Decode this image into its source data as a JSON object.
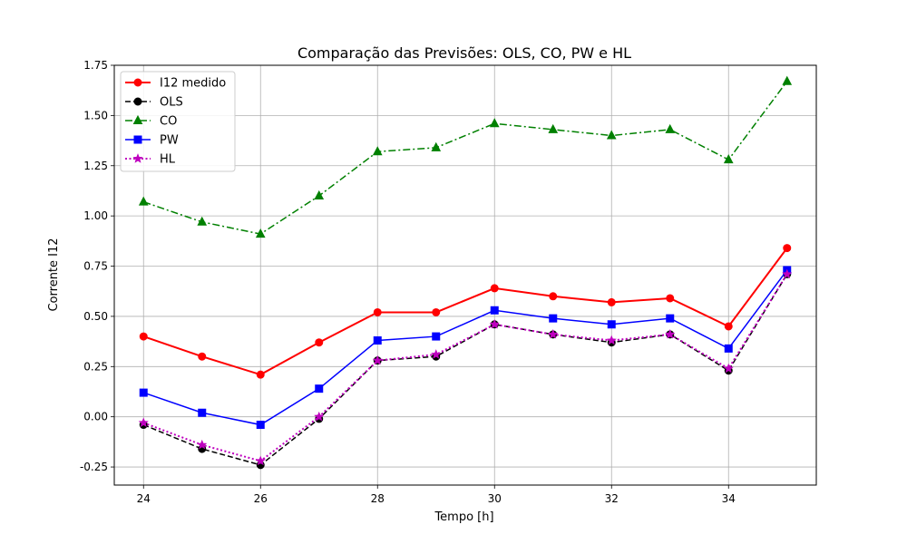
{
  "chart_data": {
    "type": "line",
    "title": "Comparação das Previsões: OLS, CO, PW e HL",
    "xlabel": "Tempo [h]",
    "ylabel": "Corrente I12",
    "xlim": [
      23.5,
      35.5
    ],
    "ylim": [
      -0.34,
      1.75
    ],
    "x_ticks": [
      24,
      26,
      28,
      30,
      32,
      34
    ],
    "y_ticks": [
      -0.25,
      0.0,
      0.25,
      0.5,
      0.75,
      1.0,
      1.25,
      1.5,
      1.75
    ],
    "grid": true,
    "legend_position": "top-left",
    "x": [
      24,
      25,
      26,
      27,
      28,
      29,
      30,
      31,
      32,
      33,
      34,
      35
    ],
    "series": [
      {
        "name": "I12 medido",
        "color": "#ff0000",
        "line_style": "solid",
        "marker": "circle",
        "values": [
          0.4,
          0.3,
          0.21,
          0.37,
          0.52,
          0.52,
          0.64,
          0.6,
          0.57,
          0.59,
          0.45,
          0.84
        ]
      },
      {
        "name": "OLS",
        "color": "#000000",
        "line_style": "dashed",
        "marker": "circle",
        "values": [
          -0.04,
          -0.16,
          -0.24,
          -0.01,
          0.28,
          0.3,
          0.46,
          0.41,
          0.37,
          0.41,
          0.23,
          0.71
        ]
      },
      {
        "name": "CO",
        "color": "#008000",
        "line_style": "dashdot",
        "marker": "triangle",
        "values": [
          1.07,
          0.97,
          0.91,
          1.1,
          1.32,
          1.34,
          1.46,
          1.43,
          1.4,
          1.43,
          1.28,
          1.67
        ]
      },
      {
        "name": "PW",
        "color": "#0000ff",
        "line_style": "solid",
        "marker": "square",
        "values": [
          0.12,
          0.02,
          -0.04,
          0.14,
          0.38,
          0.4,
          0.53,
          0.49,
          0.46,
          0.49,
          0.34,
          0.73
        ]
      },
      {
        "name": "HL",
        "color": "#bf00bf",
        "line_style": "dotted",
        "marker": "star",
        "values": [
          -0.03,
          -0.14,
          -0.22,
          0.0,
          0.28,
          0.31,
          0.46,
          0.41,
          0.38,
          0.41,
          0.24,
          0.71
        ]
      }
    ]
  }
}
